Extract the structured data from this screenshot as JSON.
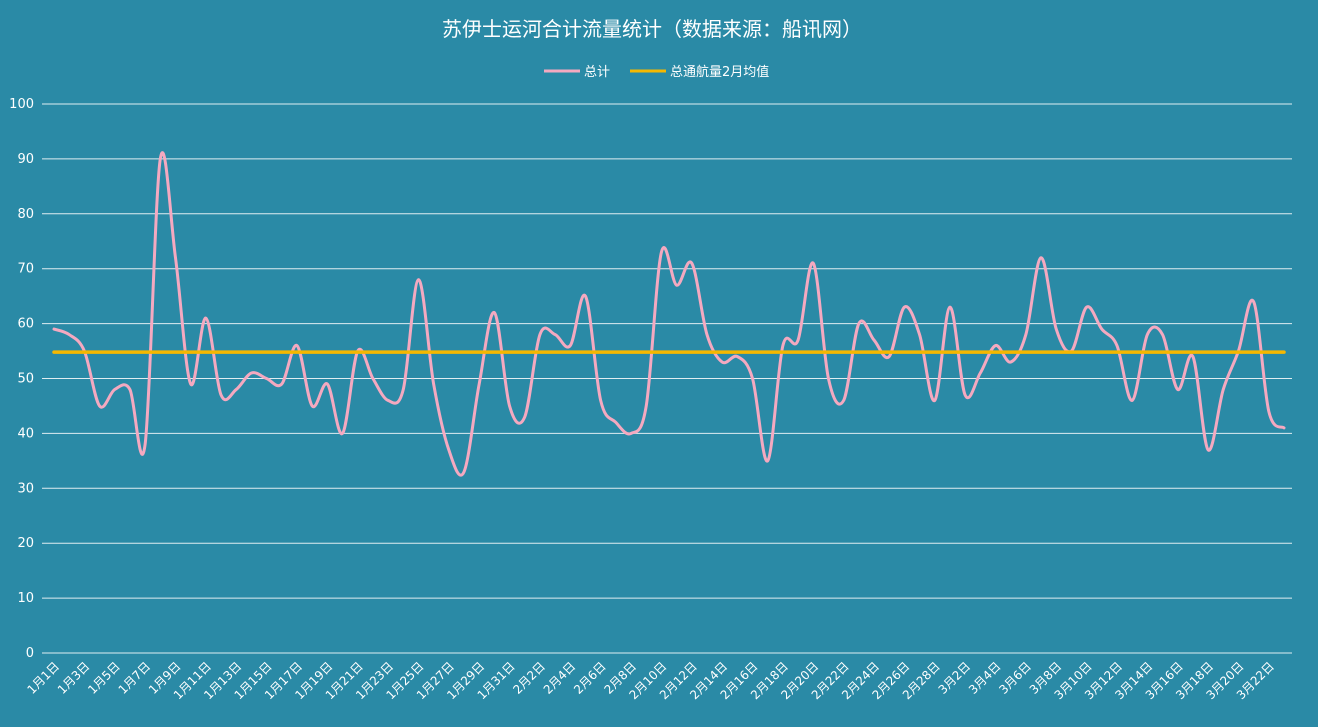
{
  "chart_data": {
    "type": "line",
    "title": "苏伊士运河合计流量统计（数据来源：船讯网）",
    "xlabel": "",
    "ylabel": "",
    "ylim": [
      0,
      100
    ],
    "yticks": [
      0,
      10,
      20,
      30,
      40,
      50,
      60,
      70,
      80,
      90,
      100
    ],
    "legend_position": "top-center",
    "grid": true,
    "categories": [
      "1月1日",
      "1月2日",
      "1月3日",
      "1月4日",
      "1月5日",
      "1月6日",
      "1月7日",
      "1月8日",
      "1月9日",
      "1月10日",
      "1月11日",
      "1月12日",
      "1月13日",
      "1月14日",
      "1月15日",
      "1月16日",
      "1月17日",
      "1月18日",
      "1月19日",
      "1月20日",
      "1月21日",
      "1月22日",
      "1月23日",
      "1月24日",
      "1月25日",
      "1月26日",
      "1月27日",
      "1月28日",
      "1月29日",
      "1月30日",
      "1月31日",
      "2月1日",
      "2月2日",
      "2月3日",
      "2月4日",
      "2月5日",
      "2月6日",
      "2月7日",
      "2月8日",
      "2月9日",
      "2月10日",
      "2月11日",
      "2月12日",
      "2月13日",
      "2月14日",
      "2月15日",
      "2月16日",
      "2月17日",
      "2月18日",
      "2月19日",
      "2月20日",
      "2月21日",
      "2月22日",
      "2月23日",
      "2月24日",
      "2月25日",
      "2月26日",
      "2月27日",
      "2月28日",
      "3月1日",
      "3月2日",
      "3月3日",
      "3月4日",
      "3月5日",
      "3月6日",
      "3月7日",
      "3月8日",
      "3月9日",
      "3月10日",
      "3月11日",
      "3月12日",
      "3月13日",
      "3月14日",
      "3月15日",
      "3月16日",
      "3月17日",
      "3月18日",
      "3月19日",
      "3月20日",
      "3月21日",
      "3月22日",
      "3月23日"
    ],
    "xtick_labels": [
      "1月1日",
      "1月3日",
      "1月5日",
      "1月7日",
      "1月9日",
      "1月11日",
      "1月13日",
      "1月15日",
      "1月17日",
      "1月19日",
      "1月21日",
      "1月23日",
      "1月25日",
      "1月27日",
      "1月29日",
      "1月31日",
      "2月2日",
      "2月4日",
      "2月6日",
      "2月8日",
      "2月10日",
      "2月12日",
      "2月14日",
      "2月16日",
      "2月18日",
      "2月20日",
      "2月22日",
      "2月24日",
      "2月26日",
      "2月28日",
      "3月2日",
      "3月4日",
      "3月6日",
      "3月8日",
      "3月10日",
      "3月12日",
      "3月14日",
      "3月16日",
      "3月18日",
      "3月20日",
      "3月22日"
    ],
    "series": [
      {
        "name": "总计",
        "color": "#f4a9c0",
        "values": [
          59,
          58,
          55,
          45,
          48,
          48,
          38,
          90,
          72,
          49,
          61,
          47,
          48,
          51,
          50,
          49,
          56,
          45,
          49,
          40,
          55,
          50,
          46,
          48,
          68,
          49,
          37,
          33,
          49,
          62,
          45,
          43,
          58,
          58,
          56,
          65,
          46,
          42,
          40,
          45,
          73,
          67,
          71,
          58,
          53,
          54,
          50,
          35,
          56,
          57,
          71,
          50,
          46,
          60,
          57,
          54,
          63,
          58,
          46,
          63,
          47,
          51,
          56,
          53,
          58,
          72,
          59,
          55,
          63,
          59,
          56,
          46,
          58,
          58,
          48,
          54,
          37,
          48,
          55,
          64,
          44,
          41
        ]
      },
      {
        "name": "总通航量2月均值",
        "color": "#f5b800",
        "values": [
          54.8,
          54.8,
          54.8,
          54.8,
          54.8,
          54.8,
          54.8,
          54.8,
          54.8,
          54.8,
          54.8,
          54.8,
          54.8,
          54.8,
          54.8,
          54.8,
          54.8,
          54.8,
          54.8,
          54.8,
          54.8,
          54.8,
          54.8,
          54.8,
          54.8,
          54.8,
          54.8,
          54.8,
          54.8,
          54.8,
          54.8,
          54.8,
          54.8,
          54.8,
          54.8,
          54.8,
          54.8,
          54.8,
          54.8,
          54.8,
          54.8,
          54.8,
          54.8,
          54.8,
          54.8,
          54.8,
          54.8,
          54.8,
          54.8,
          54.8,
          54.8,
          54.8,
          54.8,
          54.8,
          54.8,
          54.8,
          54.8,
          54.8,
          54.8,
          54.8,
          54.8,
          54.8,
          54.8,
          54.8,
          54.8,
          54.8,
          54.8,
          54.8,
          54.8,
          54.8,
          54.8,
          54.8,
          54.8,
          54.8,
          54.8,
          54.8,
          54.8,
          54.8,
          54.8,
          54.8,
          54.8,
          54.8
        ]
      }
    ]
  },
  "style": {
    "background": "#2a8aa6",
    "gridline_color": "#ffffff",
    "text_color": "#ffffff"
  }
}
